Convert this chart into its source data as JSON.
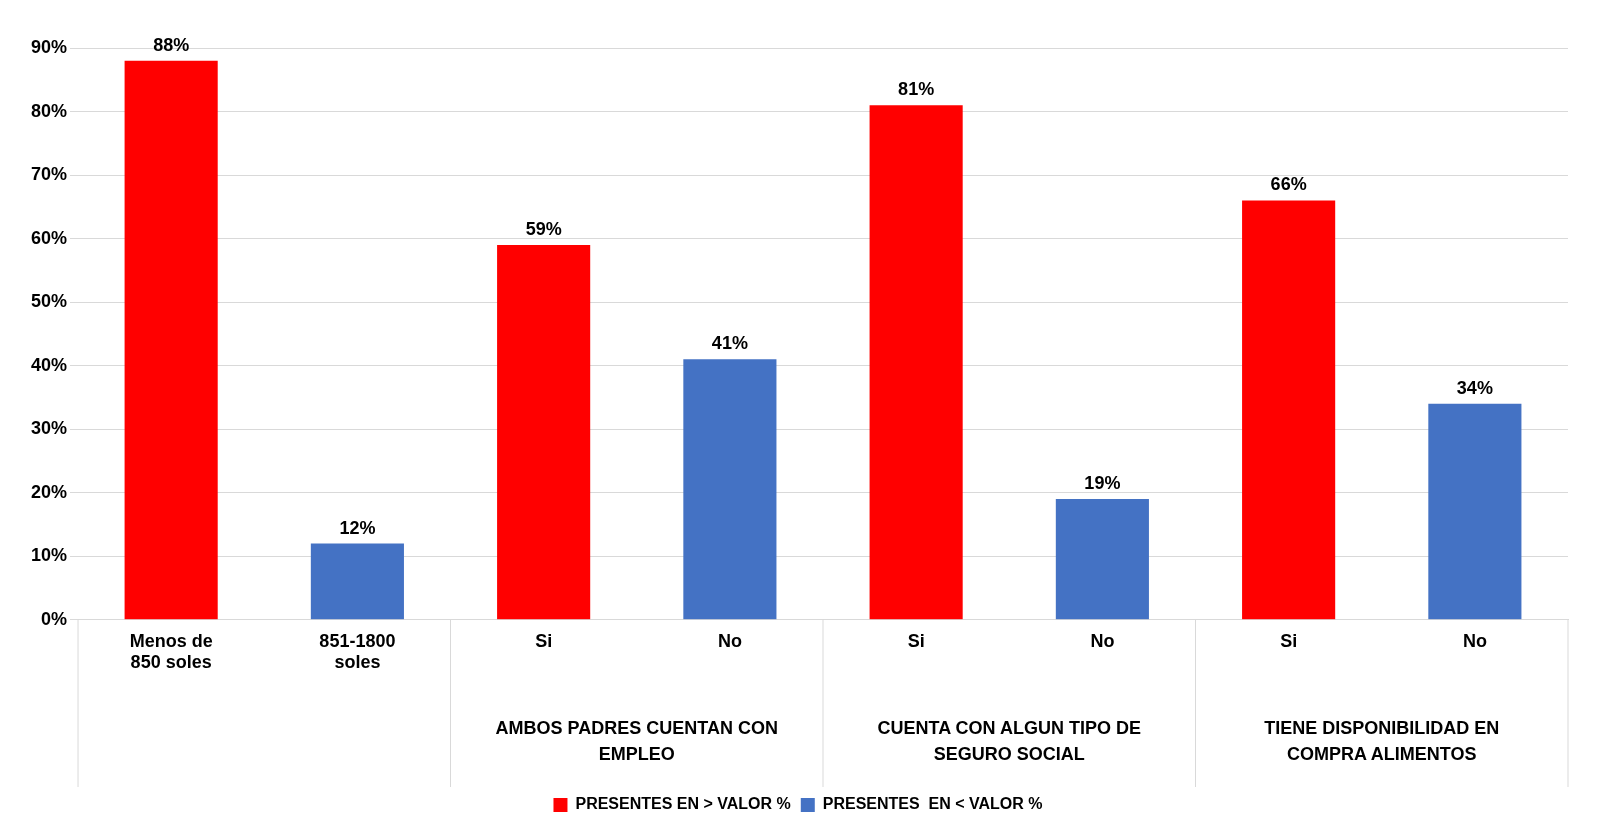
{
  "chart_data": {
    "type": "bar",
    "categories": [
      "Menos de 850 soles",
      "851-1800 soles",
      "Si",
      "No",
      "Si",
      "No",
      "Si",
      "No"
    ],
    "series": [
      {
        "name": "PRESENTES EN > VALOR %",
        "color": "#ff0000",
        "values": [
          88,
          null,
          59,
          null,
          81,
          null,
          66,
          null
        ],
        "value_labels": [
          "88%",
          null,
          "59%",
          null,
          "81%",
          null,
          "66%",
          null
        ]
      },
      {
        "name": "PRESENTES  EN < VALOR %",
        "color": "#4472c4",
        "values": [
          null,
          12,
          null,
          41,
          null,
          19,
          null,
          34
        ],
        "value_labels": [
          null,
          "12%",
          null,
          "41%",
          null,
          "19%",
          null,
          "34%"
        ]
      }
    ],
    "annotations": [
      "AMBOS PADRES CUENTAN CON EMPLEO",
      "CUENTA CON ALGUN TIPO DE SEGURO SOCIAL",
      "TIENE DISPONIBILIDAD EN COMPRA ALIMENTOS"
    ],
    "ylim": [
      0,
      90
    ],
    "yticks": [
      {
        "value": 0,
        "label": "0%"
      },
      {
        "value": 10,
        "label": "10%"
      },
      {
        "value": 20,
        "label": "20%"
      },
      {
        "value": 30,
        "label": "30%"
      },
      {
        "value": 40,
        "label": "40%"
      },
      {
        "value": 50,
        "label": "50%"
      },
      {
        "value": 60,
        "label": "60%"
      },
      {
        "value": 70,
        "label": "70%"
      },
      {
        "value": 80,
        "label": "80%"
      },
      {
        "value": 90,
        "label": "90%"
      }
    ],
    "grid": "y",
    "legend": "bottom"
  }
}
